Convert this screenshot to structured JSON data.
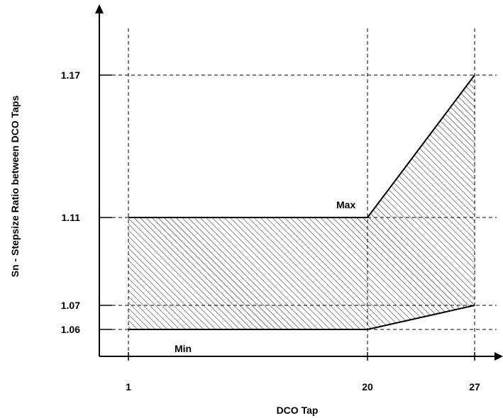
{
  "chart_data": {
    "type": "area",
    "xlabel": "DCO Tap",
    "ylabel": "Sn - Stepsize Ratio between DCO Taps",
    "x_ticks": [
      1,
      20,
      27
    ],
    "y_ticks": [
      1.06,
      1.07,
      1.11,
      1.17
    ],
    "series": [
      {
        "name": "Max",
        "x": [
          1,
          20,
          27
        ],
        "values": [
          1.11,
          1.11,
          1.17
        ]
      },
      {
        "name": "Min",
        "x": [
          1,
          20,
          27
        ],
        "values": [
          1.06,
          1.06,
          1.07
        ]
      }
    ],
    "fill_between": "hatched",
    "grid": "dashed at tick values"
  },
  "labels": {
    "max": "Max",
    "min": "Min"
  },
  "colors": {
    "line": "#000000",
    "hatch": "#000000",
    "background": "#ffffff"
  }
}
